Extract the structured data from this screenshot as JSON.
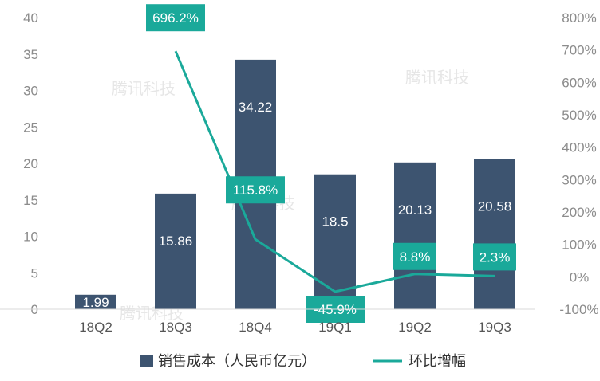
{
  "chart_data": {
    "type": "bar",
    "categories": [
      "18Q2",
      "18Q3",
      "18Q4",
      "19Q1",
      "19Q2",
      "19Q3"
    ],
    "series": [
      {
        "name": "销售成本（人民币亿元）",
        "type": "bar",
        "axis": "left",
        "values": [
          1.99,
          15.86,
          34.22,
          18.5,
          20.13,
          20.58
        ],
        "labels": [
          "1.99",
          "15.86",
          "34.22",
          "18.5",
          "20.13",
          "20.58"
        ],
        "color": "#3d5470"
      },
      {
        "name": "环比增幅",
        "type": "line",
        "axis": "right",
        "values": [
          null,
          696.2,
          115.8,
          -45.9,
          8.8,
          2.3
        ],
        "labels": [
          "",
          "696.2%",
          "115.8%",
          "-45.9%",
          "8.8%",
          "2.3%"
        ],
        "color": "#1aa99a"
      }
    ],
    "y_left": {
      "ylim": [
        0,
        40
      ],
      "ticks": [
        0,
        5,
        10,
        15,
        20,
        25,
        30,
        35,
        40
      ],
      "tick_labels": [
        "0",
        "5",
        "10",
        "15",
        "20",
        "25",
        "30",
        "35",
        "40"
      ]
    },
    "y_right": {
      "ylim": [
        -100,
        800
      ],
      "ticks": [
        -100,
        0,
        100,
        200,
        300,
        400,
        500,
        600,
        700,
        800
      ],
      "tick_labels": [
        "-100%",
        "0%",
        "100%",
        "200%",
        "300%",
        "400%",
        "500%",
        "600%",
        "700%",
        "800%"
      ]
    },
    "grid": false,
    "legend_position": "bottom"
  },
  "watermark": {
    "text": "腾讯科技"
  }
}
